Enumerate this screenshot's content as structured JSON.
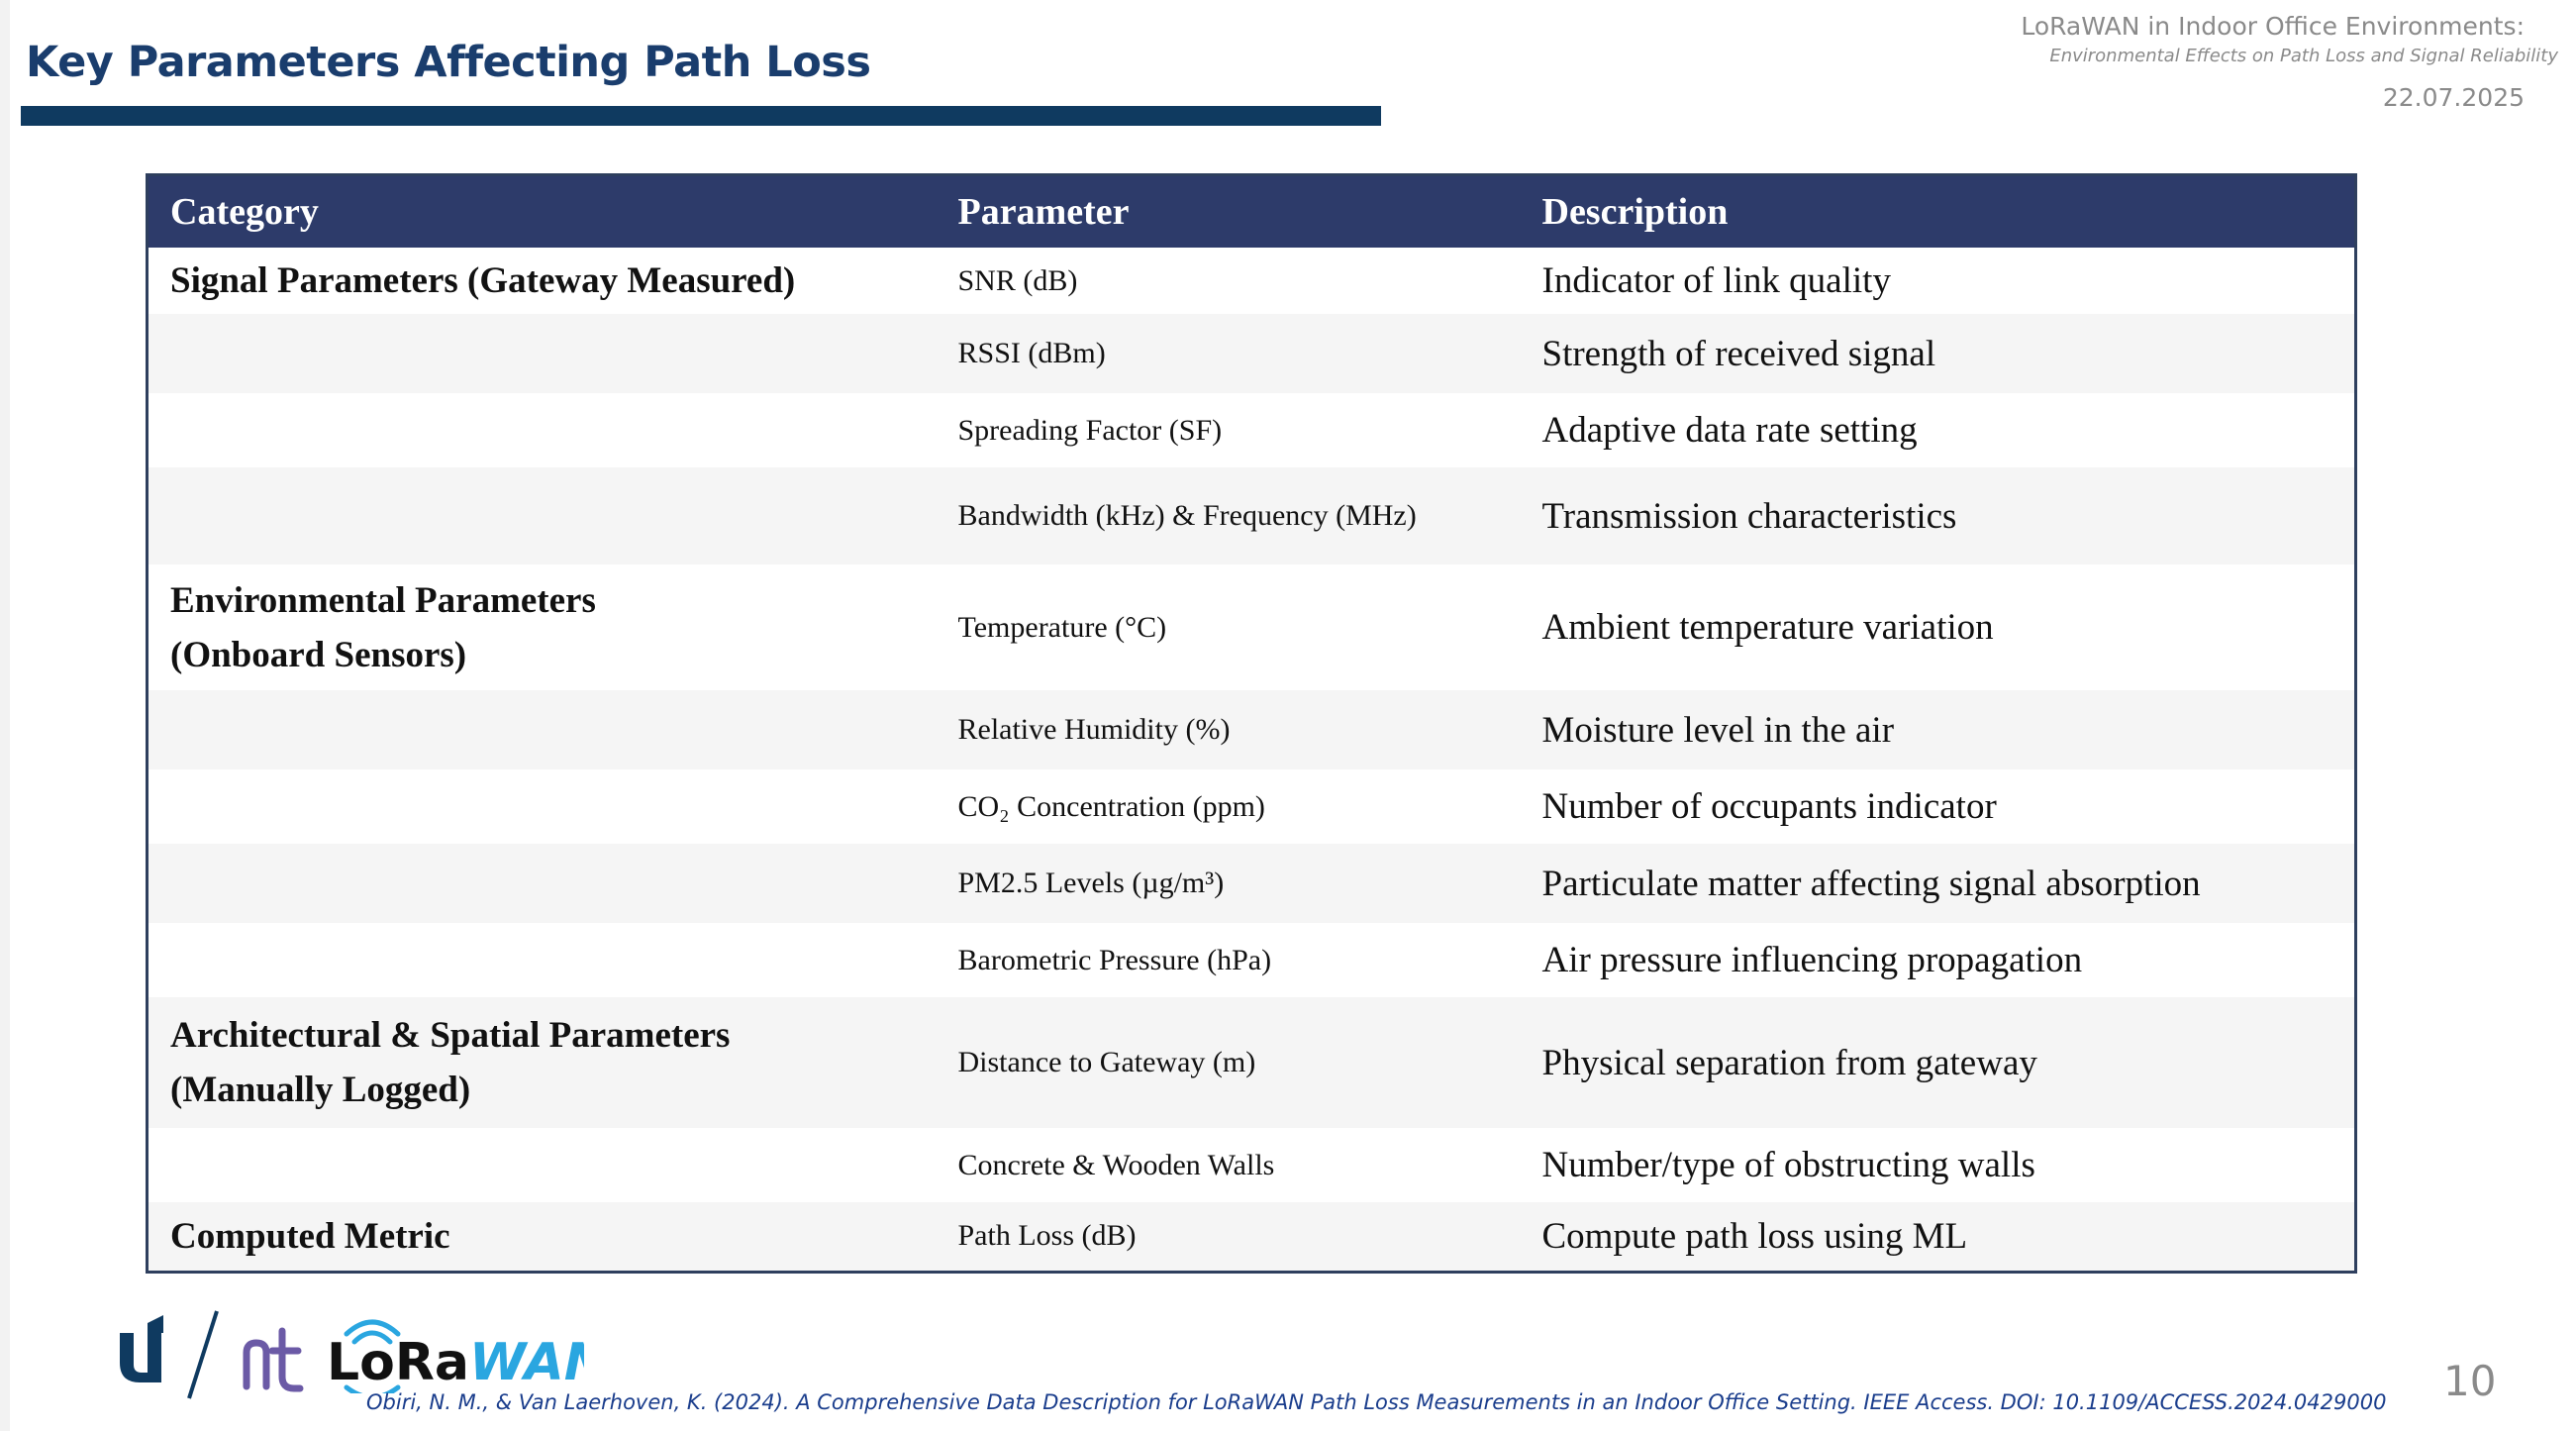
{
  "slide": {
    "title": "Key Parameters Affecting Path Loss",
    "header_title": "LoRaWAN in Indoor Office Environments:",
    "header_subtitle": "Environmental Effects on Path Loss and Signal Reliability",
    "date": "22.07.2025",
    "page_number": "10",
    "citation": "Obiri, N. M., & Van Laerhoven, K. (2024). A Comprehensive Data Description for LoRaWAN Path Loss Measurements in an Indoor Office Setting. IEEE Access. DOI: 10.1109/ACCESS.2024.0429000",
    "logo_text": "LoRaWAN",
    "colors": {
      "title": "#1a3d6d",
      "title_bar": "#0f3a60",
      "table_header": "#2d3b6a",
      "row_stripe": "#f5f5f5",
      "meta_text": "#8a8a8a",
      "citation": "#1a3d8c",
      "logo_blue": "#2aa6e0"
    }
  },
  "table": {
    "headers": [
      "Category",
      "Parameter",
      "Description"
    ],
    "rows": [
      {
        "category": "Signal Parameters (Gateway Measured)",
        "parameter": "SNR (dB)",
        "description": "Indicator of link quality"
      },
      {
        "category": "",
        "parameter": "RSSI (dBm)",
        "description": "Strength of received signal"
      },
      {
        "category": "",
        "parameter": "Spreading Factor (SF)",
        "description": "Adaptive data rate setting"
      },
      {
        "category": "",
        "parameter": "Bandwidth (kHz) & Frequency (MHz)",
        "description": "Transmission characteristics"
      },
      {
        "category": "Environmental Parameters\n(Onboard Sensors)",
        "parameter": "Temperature (°C)",
        "description": "Ambient temperature variation"
      },
      {
        "category": "",
        "parameter": "Relative Humidity (%)",
        "description": "Moisture level in the air"
      },
      {
        "category": "",
        "parameter": "CO₂ Concentration (ppm)",
        "description": "Number of occupants indicator"
      },
      {
        "category": "",
        "parameter": "PM2.5 Levels (µg/m³)",
        "description": "Particulate matter affecting signal absorption"
      },
      {
        "category": "",
        "parameter": "Barometric Pressure (hPa)",
        "description": "Air pressure influencing propagation"
      },
      {
        "category": "Architectural & Spatial Parameters\n(Manually Logged)",
        "parameter": "Distance to Gateway (m)",
        "description": "Physical separation from gateway"
      },
      {
        "category": "",
        "parameter": "Concrete & Wooden Walls",
        "description": "Number/type of obstructing walls"
      },
      {
        "category": "Computed Metric",
        "parameter": "Path Loss (dB)",
        "description": "Compute path loss using ML"
      }
    ]
  },
  "icons": [
    "university-logo-icon",
    "nt-logo-icon",
    "lorawan-logo-icon"
  ]
}
